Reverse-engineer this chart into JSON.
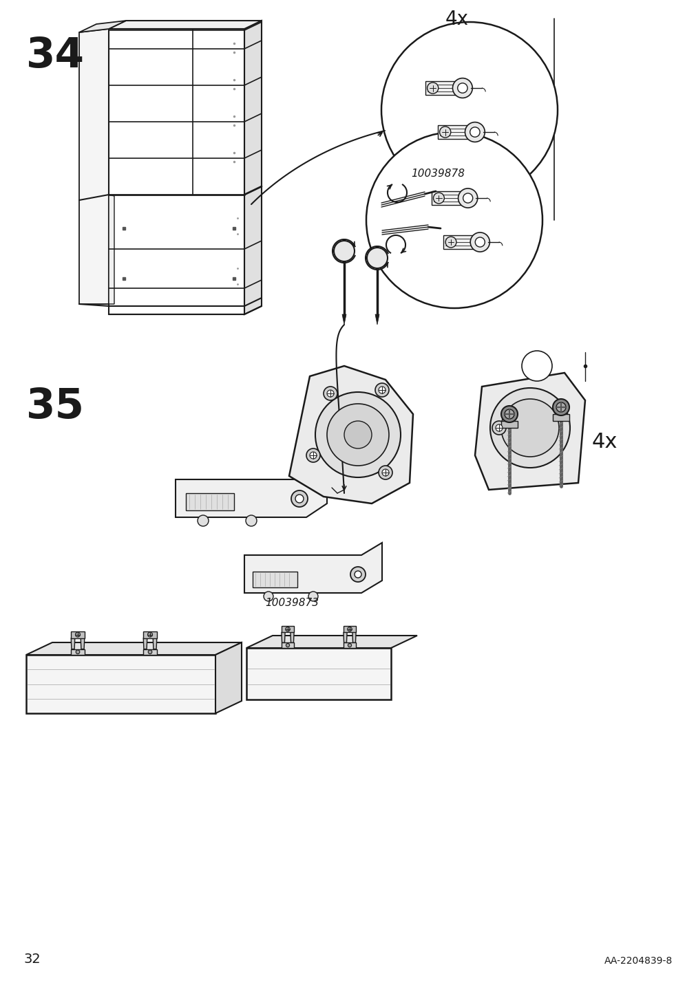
{
  "page_number": "32",
  "catalog_number": "AA-2204839-8",
  "part_number_1": "10039878",
  "part_number_2": "10039873",
  "background_color": "#ffffff",
  "line_color": "#1a1a1a",
  "text_color": "#1a1a1a",
  "step34_label": "34",
  "step35_label": "35",
  "multiplier": "4x"
}
